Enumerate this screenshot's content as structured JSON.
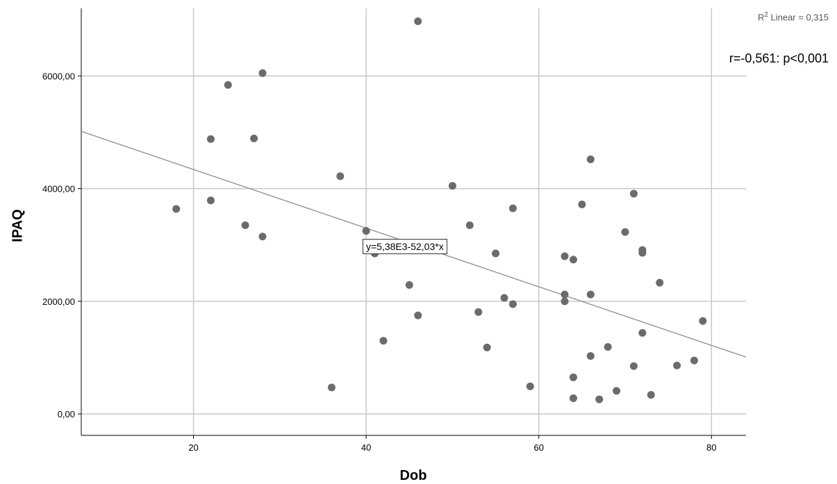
{
  "chart_data": {
    "type": "scatter",
    "xlabel": "Dob",
    "ylabel": "IPAQ",
    "xlim": [
      7,
      84
    ],
    "ylim": [
      -380,
      7200
    ],
    "x_ticks": [
      20,
      40,
      60,
      80
    ],
    "x_tick_labels": [
      "20",
      "40",
      "60",
      "80"
    ],
    "y_ticks": [
      0,
      2000,
      4000,
      6000
    ],
    "y_tick_labels": [
      "0,00",
      "2000,00",
      "4000,00",
      "6000,00"
    ],
    "grid": true,
    "point_color": "#6b6b6b",
    "fit_line_color": "#8c8c8c",
    "r2_prefix": "R",
    "r2_sup": "2",
    "r2_suffix": " Linear = 0,315",
    "annotation_r": "r=-0,561: p<0,001",
    "fit_equation": "y=5,38E3-52,03*x",
    "fit_line": {
      "intercept": 5380,
      "slope": -52.03
    },
    "points": [
      {
        "x": 18,
        "y": 3640
      },
      {
        "x": 22,
        "y": 4880
      },
      {
        "x": 22,
        "y": 3790
      },
      {
        "x": 24,
        "y": 5840
      },
      {
        "x": 26,
        "y": 3350
      },
      {
        "x": 27,
        "y": 4890
      },
      {
        "x": 28,
        "y": 6050
      },
      {
        "x": 28,
        "y": 3150
      },
      {
        "x": 36,
        "y": 470
      },
      {
        "x": 37,
        "y": 4220
      },
      {
        "x": 40,
        "y": 3250
      },
      {
        "x": 41,
        "y": 2850
      },
      {
        "x": 42,
        "y": 1300
      },
      {
        "x": 45,
        "y": 2290
      },
      {
        "x": 46,
        "y": 6970
      },
      {
        "x": 46,
        "y": 1750
      },
      {
        "x": 50,
        "y": 4050
      },
      {
        "x": 52,
        "y": 3350
      },
      {
        "x": 53,
        "y": 1810
      },
      {
        "x": 54,
        "y": 1180
      },
      {
        "x": 55,
        "y": 2850
      },
      {
        "x": 56,
        "y": 2060
      },
      {
        "x": 57,
        "y": 3650
      },
      {
        "x": 57,
        "y": 1950
      },
      {
        "x": 59,
        "y": 490
      },
      {
        "x": 63,
        "y": 2800
      },
      {
        "x": 63,
        "y": 2120
      },
      {
        "x": 63,
        "y": 2000
      },
      {
        "x": 64,
        "y": 2740
      },
      {
        "x": 64,
        "y": 650
      },
      {
        "x": 64,
        "y": 280
      },
      {
        "x": 65,
        "y": 3720
      },
      {
        "x": 66,
        "y": 4520
      },
      {
        "x": 66,
        "y": 2120
      },
      {
        "x": 66,
        "y": 1030
      },
      {
        "x": 67,
        "y": 260
      },
      {
        "x": 68,
        "y": 1190
      },
      {
        "x": 69,
        "y": 410
      },
      {
        "x": 70,
        "y": 3230
      },
      {
        "x": 71,
        "y": 3910
      },
      {
        "x": 71,
        "y": 850
      },
      {
        "x": 72,
        "y": 2910
      },
      {
        "x": 72,
        "y": 2860
      },
      {
        "x": 72,
        "y": 1440
      },
      {
        "x": 73,
        "y": 340
      },
      {
        "x": 74,
        "y": 2330
      },
      {
        "x": 76,
        "y": 860
      },
      {
        "x": 78,
        "y": 950
      },
      {
        "x": 79,
        "y": 1650
      }
    ]
  }
}
